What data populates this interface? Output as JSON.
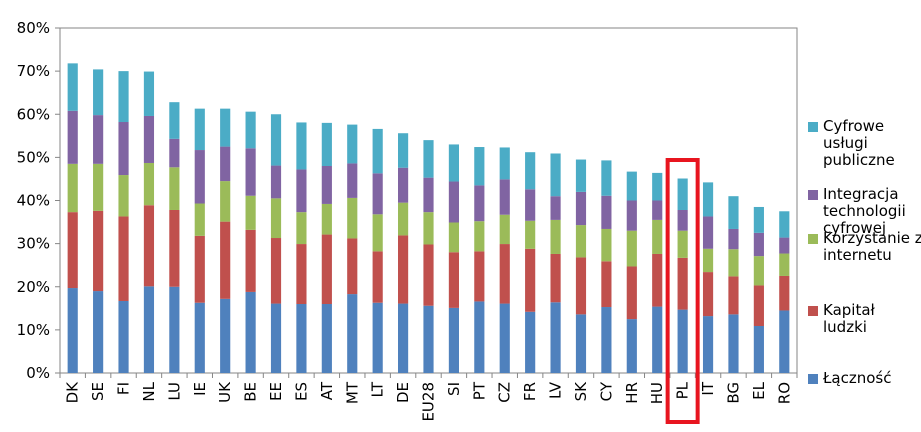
{
  "chart_data": {
    "type": "bar",
    "stacked": true,
    "categories": [
      "DK",
      "SE",
      "FI",
      "NL",
      "LU",
      "IE",
      "UK",
      "BE",
      "EE",
      "ES",
      "AT",
      "MT",
      "LT",
      "DE",
      "EU28",
      "SI",
      "PT",
      "CZ",
      "FR",
      "LV",
      "SK",
      "CY",
      "HR",
      "HU",
      "PL",
      "IT",
      "BG",
      "EL",
      "RO"
    ],
    "highlight": "PL",
    "ylim": [
      0,
      80
    ],
    "yticks": [
      "0%",
      "10%",
      "20%",
      "30%",
      "40%",
      "50%",
      "60%",
      "70%",
      "80%"
    ],
    "grid": false,
    "legend_position": "right",
    "series": [
      {
        "name": "Łączność",
        "color": "#4f81bd",
        "values": [
          19.7,
          19.0,
          16.7,
          20.1,
          20.0,
          16.3,
          17.2,
          18.8,
          16.1,
          16.0,
          16.0,
          18.3,
          16.3,
          16.1,
          15.6,
          15.1,
          16.6,
          16.1,
          14.2,
          16.4,
          13.6,
          15.3,
          12.5,
          15.4,
          14.7,
          13.2,
          13.6,
          10.9,
          14.5
        ]
      },
      {
        "name": "Kapitał ludzki",
        "color": "#c0504d",
        "values": [
          17.6,
          18.6,
          19.6,
          18.8,
          17.8,
          15.5,
          17.9,
          14.4,
          15.2,
          13.9,
          16.1,
          12.9,
          11.9,
          15.8,
          14.2,
          12.9,
          11.6,
          13.8,
          14.6,
          11.2,
          13.2,
          10.6,
          12.2,
          12.2,
          12.0,
          10.2,
          8.8,
          9.4,
          8.0
        ]
      },
      {
        "name": "Korzystanie z internetu",
        "color": "#9bbb59",
        "values": [
          11.2,
          10.9,
          9.6,
          9.8,
          9.9,
          7.5,
          9.4,
          7.9,
          9.2,
          7.4,
          7.1,
          9.4,
          8.6,
          7.6,
          7.5,
          6.9,
          7.0,
          6.8,
          6.5,
          7.9,
          7.5,
          7.5,
          8.3,
          7.9,
          6.3,
          5.4,
          6.3,
          6.8,
          5.2
        ]
      },
      {
        "name": "Integracja technologii cyfrowej",
        "color": "#8064a2",
        "values": [
          12.3,
          11.3,
          12.3,
          10.9,
          6.6,
          12.4,
          8.0,
          11.0,
          7.6,
          9.9,
          8.8,
          8.0,
          9.5,
          8.1,
          8.0,
          9.5,
          8.3,
          8.2,
          7.3,
          5.5,
          7.7,
          7.7,
          7.0,
          4.5,
          4.8,
          7.5,
          4.7,
          5.4,
          3.7
        ]
      },
      {
        "name": "Cyfrowe usługi publiczne",
        "color": "#4bacc6",
        "values": [
          11.0,
          10.6,
          11.8,
          10.3,
          8.5,
          9.6,
          8.8,
          8.5,
          11.9,
          10.9,
          10.0,
          9.0,
          10.3,
          8.0,
          8.7,
          8.6,
          8.9,
          7.4,
          8.6,
          9.9,
          7.5,
          8.2,
          6.7,
          6.4,
          7.3,
          7.9,
          7.6,
          6.0,
          6.1
        ]
      }
    ]
  }
}
